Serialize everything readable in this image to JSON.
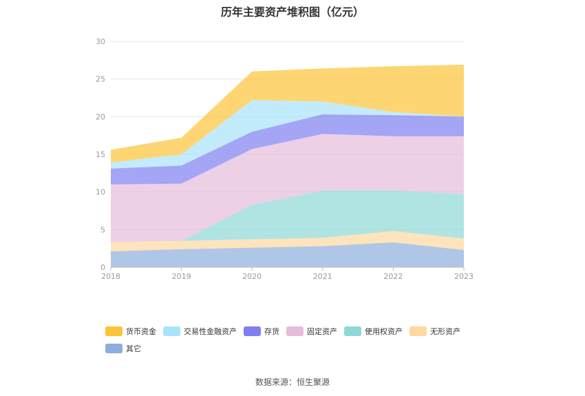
{
  "chart_data": {
    "type": "area",
    "stacked": true,
    "title": "历年主要资产堆积图（亿元）",
    "categories": [
      "2018",
      "2019",
      "2020",
      "2021",
      "2022",
      "2023"
    ],
    "ylim": [
      0,
      30
    ],
    "yticks": [
      0,
      5,
      10,
      15,
      20,
      25,
      30
    ],
    "grid": true,
    "legend_position": "bottom",
    "series": [
      {
        "name": "其它",
        "color": "#8eaedb",
        "values": [
          2.1,
          2.4,
          2.6,
          2.8,
          3.3,
          2.3
        ]
      },
      {
        "name": "无形资产",
        "color": "#fdd9a0",
        "values": [
          1.2,
          1.1,
          1.1,
          1.1,
          1.5,
          1.5
        ]
      },
      {
        "name": "使用权资产",
        "color": "#8ed9d6",
        "values": [
          0.0,
          0.0,
          4.6,
          6.3,
          5.4,
          5.9
        ]
      },
      {
        "name": "固定资产",
        "color": "#e6bbdb",
        "values": [
          7.7,
          7.6,
          7.4,
          7.5,
          7.2,
          7.7
        ]
      },
      {
        "name": "存货",
        "color": "#7f7ff2",
        "values": [
          2.1,
          2.4,
          2.3,
          2.6,
          2.8,
          2.6
        ]
      },
      {
        "name": "交易性金融资产",
        "color": "#a8e3fb",
        "values": [
          0.8,
          1.5,
          4.2,
          1.7,
          0.4,
          0.0
        ]
      },
      {
        "name": "货币资金",
        "color": "#fcc438",
        "values": [
          1.7,
          2.2,
          3.8,
          4.4,
          6.1,
          6.9
        ]
      }
    ]
  },
  "source_text": "数据来源：恒生聚源"
}
